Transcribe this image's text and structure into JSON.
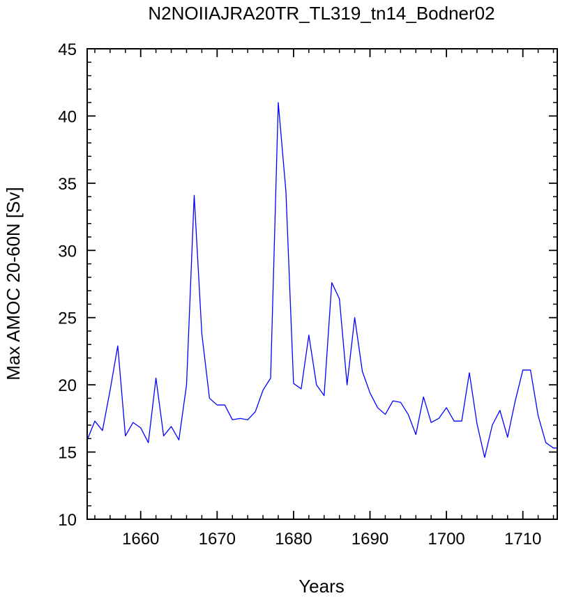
{
  "chart_data": {
    "type": "line",
    "title": "N2NOIIAJRA20TR_TL319_tn14_Bodner02",
    "xlabel": "Years",
    "ylabel": "Max AMOC 20-60N [Sv]",
    "xlim": [
      1653,
      1714.5
    ],
    "ylim": [
      10,
      45
    ],
    "xticks": [
      1660,
      1670,
      1680,
      1690,
      1700,
      1710
    ],
    "yticks": [
      10,
      15,
      20,
      25,
      30,
      35,
      40,
      45
    ],
    "x_minor_step": 2,
    "y_minor_step": 1,
    "grid": false,
    "series": [
      {
        "color": "#0000ff",
        "x": [
          1653,
          1654,
          1655,
          1656,
          1657,
          1658,
          1659,
          1660,
          1661,
          1662,
          1663,
          1664,
          1665,
          1666,
          1667,
          1668,
          1669,
          1670,
          1671,
          1672,
          1673,
          1674,
          1675,
          1676,
          1677,
          1678,
          1679,
          1680,
          1681,
          1682,
          1683,
          1684,
          1685,
          1686,
          1687,
          1688,
          1689,
          1690,
          1691,
          1692,
          1693,
          1694,
          1695,
          1696,
          1697,
          1698,
          1699,
          1700,
          1701,
          1702,
          1703,
          1704,
          1705,
          1706,
          1707,
          1708,
          1709,
          1710,
          1711,
          1712,
          1713,
          1714,
          1714.5
        ],
        "y": [
          15.9,
          17.3,
          16.6,
          19.6,
          22.9,
          16.2,
          17.2,
          16.8,
          15.7,
          20.5,
          16.2,
          16.9,
          15.9,
          20.0,
          34.1,
          23.8,
          19.0,
          18.5,
          18.5,
          17.4,
          17.5,
          17.4,
          18.0,
          19.6,
          20.5,
          41.0,
          34.4,
          20.1,
          19.7,
          23.7,
          20.0,
          19.2,
          27.6,
          26.4,
          20.0,
          25.0,
          21.0,
          19.4,
          18.3,
          17.8,
          18.8,
          18.7,
          17.8,
          16.3,
          19.1,
          17.2,
          17.5,
          18.3,
          17.3,
          17.3,
          20.9,
          17.1,
          14.6,
          17.0,
          18.1,
          16.1,
          18.8,
          21.1,
          21.1,
          17.7,
          15.7,
          15.3,
          15.3
        ]
      }
    ]
  }
}
